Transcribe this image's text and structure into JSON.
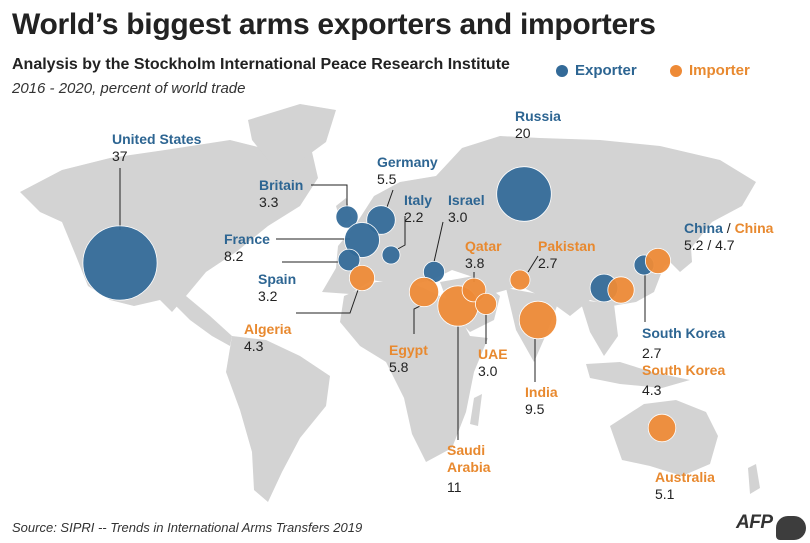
{
  "title": "World’s biggest arms exporters and importers",
  "subtitle": "Analysis by the Stockholm International Peace Research Institute",
  "period": "2016 - 2020, percent of world trade",
  "legend": {
    "exporter": "Exporter",
    "importer": "Importer"
  },
  "colors": {
    "exporter": "#336a98",
    "importer": "#ee8a36",
    "land": "#d3d3d3",
    "leader": "#222222"
  },
  "source": "Source: SIPRI -- Trends in International Arms Transfers 2019",
  "logo": "AFP",
  "countries": {
    "united_states": {
      "name": "United States",
      "value": "37"
    },
    "russia": {
      "name": "Russia",
      "value": "20"
    },
    "germany": {
      "name": "Germany",
      "value": "5.5"
    },
    "britain": {
      "name": "Britain",
      "value": "3.3"
    },
    "italy": {
      "name": "Italy",
      "value": "2.2"
    },
    "israel": {
      "name": "Israel",
      "value": "3.0"
    },
    "france": {
      "name": "France",
      "value": "8.2"
    },
    "spain": {
      "name": "Spain",
      "value": "3.2"
    },
    "algeria": {
      "name": "Algeria",
      "value": "4.3"
    },
    "egypt": {
      "name": "Egypt",
      "value": "5.8"
    },
    "qatar": {
      "name": "Qatar",
      "value": "3.8"
    },
    "pakistan": {
      "name": "Pakistan",
      "value": "2.7"
    },
    "uae": {
      "name": "UAE",
      "value": "3.0"
    },
    "india": {
      "name": "India",
      "value": "9.5"
    },
    "saudi_arabia": {
      "name": "Saudi Arabia",
      "value": "11"
    },
    "china": {
      "exporter_name": "China",
      "separator": "/",
      "importer_name": "China",
      "value": "5.2 / 4.7"
    },
    "south_korea_exporter": {
      "name": "South Korea",
      "value": "2.7"
    },
    "south_korea_importer": {
      "name": "South Korea",
      "value": "4.3"
    },
    "australia": {
      "name": "Australia",
      "value": "5.1"
    }
  }
}
